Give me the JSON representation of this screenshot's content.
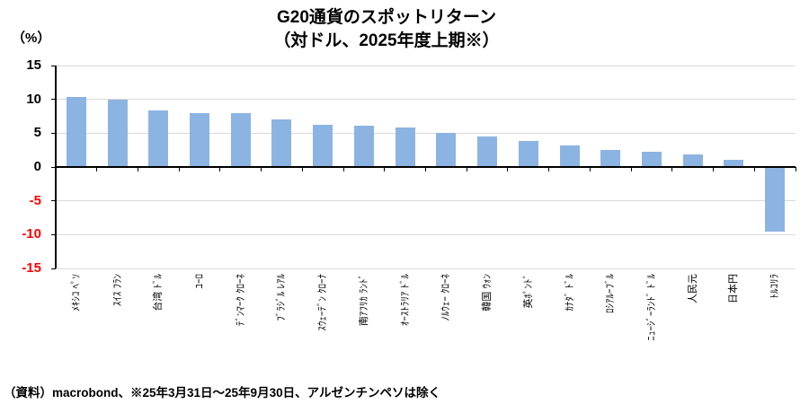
{
  "chart_data": {
    "type": "bar",
    "title": "G20通貨のスポットリターン",
    "subtitle": "（対ドル、2025年度上期※）",
    "ylabel": "（%）",
    "ylim": [
      -15,
      15
    ],
    "yticks": [
      15,
      10,
      5,
      0,
      -5,
      -10,
      -15
    ],
    "grid": true,
    "legend": false,
    "categories": [
      "ﾒｷｼｺ ﾍﾟｿ",
      "ｽｲｽ ﾌﾗﾝ",
      "台湾 ﾄﾞﾙ",
      "ﾕｰﾛ",
      "ﾃﾞﾝﾏｰｸ ｸﾛｰﾈ",
      "ﾌﾞﾗｼﾞﾙ ﾚｱﾙ",
      "ｽｳｪｰﾃﾞﾝ ｸﾛｰﾅ",
      "南ｱﾌﾘｶ ﾗﾝﾄﾞ",
      "ｵｰｽﾄﾗﾘｱ ﾄﾞﾙ",
      "ﾉﾙｳｪｰ ｸﾛｰﾈ",
      "韓国 ｳｫﾝ",
      "英ﾎﾟﾝﾄﾞ",
      "ｶﾅﾀﾞ ﾄﾞﾙ",
      "ﾛｼｱﾙｰﾌﾞﾙ",
      "ﾆｭｰｼﾞｰﾗﾝﾄﾞ ﾄﾞﾙ",
      "人民元",
      "日本円",
      "ﾄﾙｺﾘﾗ"
    ],
    "values": [
      10.3,
      10.0,
      8.3,
      8.0,
      7.9,
      7.0,
      6.2,
      6.1,
      5.9,
      5.1,
      4.5,
      3.9,
      3.2,
      2.5,
      2.3,
      1.9,
      1.1,
      -9.6
    ]
  },
  "source_note": "（資料）macrobond、※25年3月31日～25年9月30日、アルゼンチンペソは除く",
  "colors": {
    "bar": "#8CB4E2",
    "gridline": "#D9D9D9",
    "axis": "#000000",
    "positive_label": "#000000",
    "negative_label": "#FF0000",
    "background": "#FFFFFF"
  }
}
